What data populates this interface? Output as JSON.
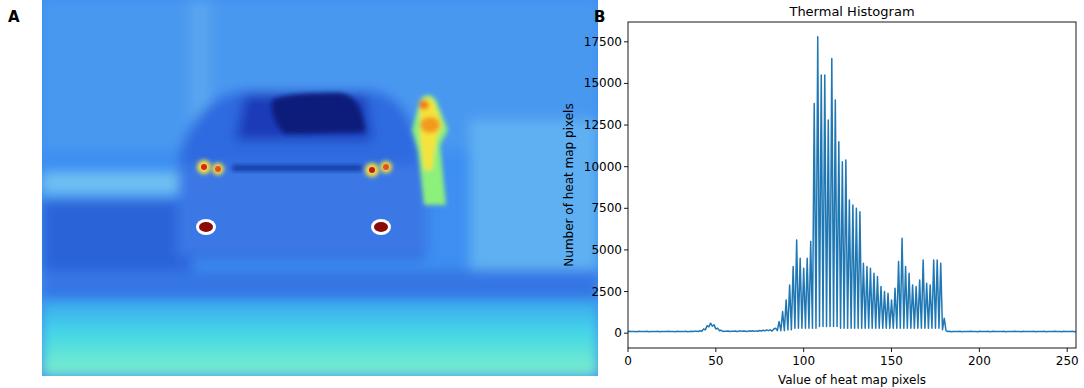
{
  "panel_labels": [
    "A",
    "B"
  ],
  "chart_data": {
    "type": "line",
    "title": "Thermal Histogram",
    "xlabel": "Value of heat map pixels",
    "ylabel": "Number of heat map pixels",
    "color": "#1f77b4",
    "grid": false,
    "xlim": [
      0,
      255
    ],
    "ylim": [
      -890,
      18690
    ],
    "xticks": [
      0,
      50,
      100,
      150,
      200,
      250
    ],
    "yticks": [
      0,
      2500,
      5000,
      7500,
      10000,
      12500,
      15000,
      17500
    ],
    "x": [
      0,
      1,
      2,
      3,
      4,
      5,
      6,
      7,
      8,
      9,
      10,
      11,
      12,
      13,
      14,
      15,
      16,
      17,
      18,
      19,
      20,
      21,
      22,
      23,
      24,
      25,
      26,
      27,
      28,
      29,
      30,
      31,
      32,
      33,
      34,
      35,
      36,
      37,
      38,
      39,
      40,
      41,
      42,
      43,
      44,
      45,
      46,
      47,
      48,
      49,
      50,
      51,
      52,
      53,
      54,
      55,
      56,
      57,
      58,
      59,
      60,
      61,
      62,
      63,
      64,
      65,
      66,
      67,
      68,
      69,
      70,
      71,
      72,
      73,
      74,
      75,
      76,
      77,
      78,
      79,
      80,
      81,
      82,
      83,
      84,
      85,
      86,
      87,
      88,
      89,
      90,
      91,
      92,
      93,
      94,
      95,
      96,
      97,
      98,
      99,
      100,
      101,
      102,
      103,
      104,
      105,
      106,
      107,
      108,
      109,
      110,
      111,
      112,
      113,
      114,
      115,
      116,
      117,
      118,
      119,
      120,
      121,
      122,
      123,
      124,
      125,
      126,
      127,
      128,
      129,
      130,
      131,
      132,
      133,
      134,
      135,
      136,
      137,
      138,
      139,
      140,
      141,
      142,
      143,
      144,
      145,
      146,
      147,
      148,
      149,
      150,
      151,
      152,
      153,
      154,
      155,
      156,
      157,
      158,
      159,
      160,
      161,
      162,
      163,
      164,
      165,
      166,
      167,
      168,
      169,
      170,
      171,
      172,
      173,
      174,
      175,
      176,
      177,
      178,
      179,
      180,
      181,
      182,
      183,
      184,
      185,
      186,
      187,
      188,
      189,
      190,
      191,
      192,
      193,
      194,
      195,
      196,
      197,
      198,
      199,
      200,
      201,
      202,
      203,
      204,
      205,
      206,
      207,
      208,
      209,
      210,
      211,
      212,
      213,
      214,
      215,
      216,
      217,
      218,
      219,
      220,
      221,
      222,
      223,
      224,
      225,
      226,
      227,
      228,
      229,
      230,
      231,
      232,
      233,
      234,
      235,
      236,
      237,
      238,
      239,
      240,
      241,
      242,
      243,
      244,
      245,
      246,
      247,
      248,
      249,
      250,
      251,
      252,
      253,
      254,
      255
    ],
    "values": [
      90,
      110,
      95,
      105,
      100,
      90,
      110,
      100,
      95,
      105,
      100,
      110,
      90,
      100,
      105,
      95,
      100,
      110,
      90,
      100,
      105,
      95,
      100,
      110,
      95,
      100,
      105,
      90,
      110,
      100,
      95,
      105,
      100,
      110,
      90,
      100,
      110,
      95,
      120,
      110,
      100,
      150,
      120,
      250,
      200,
      450,
      380,
      600,
      420,
      500,
      250,
      300,
      150,
      180,
      100,
      120,
      110,
      130,
      100,
      120,
      110,
      130,
      100,
      120,
      140,
      110,
      130,
      120,
      100,
      140,
      120,
      150,
      110,
      140,
      120,
      160,
      130,
      180,
      140,
      200,
      150,
      200,
      130,
      250,
      300,
      150,
      700,
      150,
      1300,
      150,
      2000,
      200,
      2900,
      200,
      4000,
      300,
      5600,
      300,
      4500,
      300,
      3900,
      300,
      4500,
      300,
      5500,
      300,
      13800,
      300,
      17800,
      400,
      15500,
      400,
      15500,
      400,
      12800,
      400,
      16500,
      400,
      14000,
      400,
      11500,
      300,
      10300,
      300,
      10400,
      300,
      8000,
      300,
      7700,
      300,
      7500,
      300,
      7300,
      300,
      4200,
      300,
      4000,
      300,
      3900,
      300,
      3600,
      300,
      3400,
      300,
      2800,
      300,
      2500,
      300,
      2400,
      300,
      2000,
      300,
      2700,
      300,
      4300,
      300,
      5700,
      300,
      4000,
      300,
      3600,
      300,
      2900,
      300,
      2800,
      300,
      3200,
      300,
      4400,
      300,
      3000,
      300,
      2900,
      300,
      4400,
      300,
      4400,
      300,
      4200,
      200,
      900,
      150,
      100,
      110,
      90,
      100,
      105,
      95,
      100,
      110,
      90,
      100,
      105,
      95,
      100,
      110,
      95,
      100,
      105,
      90,
      110,
      100,
      95,
      105,
      100,
      110,
      90,
      100,
      110,
      95,
      100,
      105,
      95,
      100,
      110,
      90,
      100,
      105,
      95,
      100,
      110,
      95,
      100,
      105,
      90,
      110,
      100,
      95,
      105,
      100,
      100,
      110,
      90,
      100,
      105,
      95,
      100,
      110,
      90,
      100,
      105,
      95,
      100,
      110,
      95,
      100,
      105,
      90,
      110,
      100,
      95,
      105,
      100,
      110,
      90,
      100
    ]
  }
}
